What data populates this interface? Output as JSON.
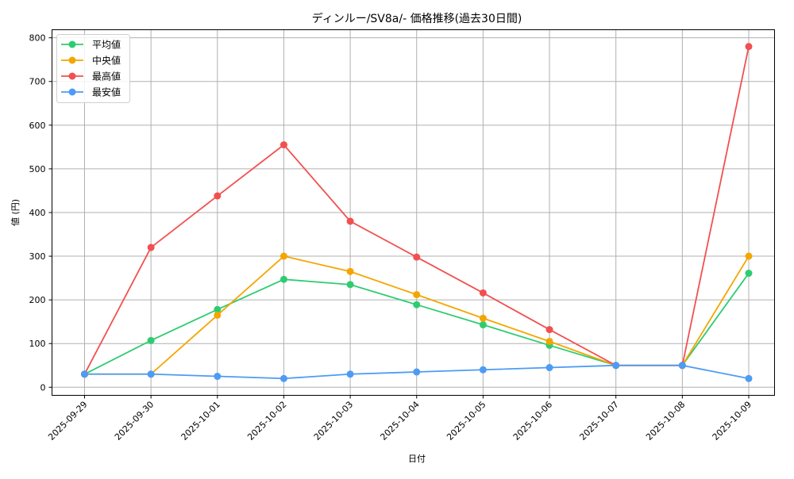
{
  "chart_data": {
    "type": "line",
    "title": "ディンルー/SV8a/- 価格推移(過去30日間)",
    "xlabel": "日付",
    "ylabel": "値 (円)",
    "ylim": [
      -20,
      820
    ],
    "yticks": [
      0,
      100,
      200,
      300,
      400,
      500,
      600,
      700,
      800
    ],
    "grid": true,
    "legend_position": "upper left",
    "categories": [
      "2025-09-29",
      "2025-09-30",
      "2025-10-01",
      "2025-10-02",
      "2025-10-03",
      "2025-10-04",
      "2025-10-05",
      "2025-10-06",
      "2025-10-07",
      "2025-10-08",
      "2025-10-09"
    ],
    "series": [
      {
        "name": "平均値",
        "color": "#2ecc71",
        "values": [
          30,
          107,
          178,
          247,
          235,
          189,
          143,
          96,
          50,
          50,
          261
        ]
      },
      {
        "name": "中央値",
        "color": "#f5a500",
        "values": [
          30,
          30,
          165,
          300,
          265,
          212,
          158,
          105,
          50,
          50,
          300
        ]
      },
      {
        "name": "最高値",
        "color": "#f25050",
        "values": [
          30,
          320,
          438,
          555,
          380,
          298,
          216,
          132,
          50,
          50,
          780
        ]
      },
      {
        "name": "最安値",
        "color": "#4d9bf5",
        "values": [
          30,
          30,
          25,
          20,
          30,
          35,
          40,
          45,
          50,
          50,
          20
        ]
      }
    ]
  }
}
